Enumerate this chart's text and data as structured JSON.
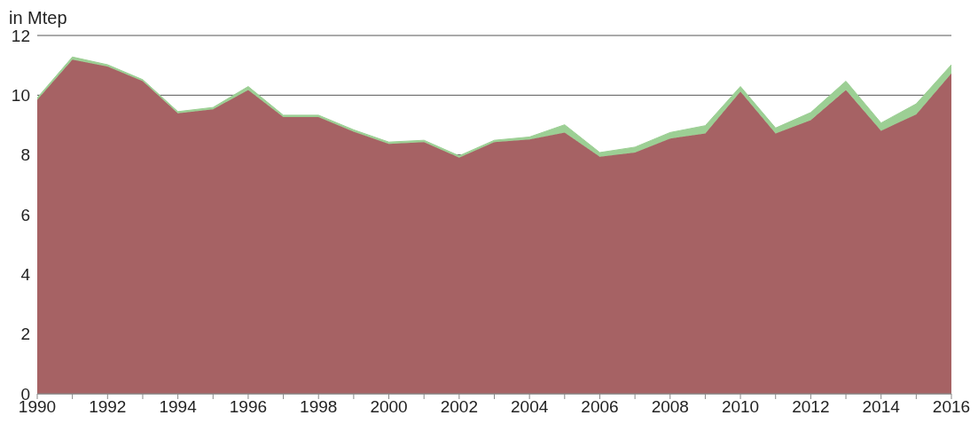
{
  "chart_data": {
    "type": "area",
    "stacked": true,
    "ylabel": "in Mtep",
    "x": [
      1990,
      1991,
      1992,
      1993,
      1994,
      1995,
      1996,
      1997,
      1998,
      1999,
      2000,
      2001,
      2002,
      2003,
      2004,
      2005,
      2006,
      2007,
      2008,
      2009,
      2010,
      2011,
      2012,
      2013,
      2014,
      2015,
      2016
    ],
    "series": [
      {
        "color": "#a66264",
        "values": [
          9.85,
          11.19,
          10.96,
          10.47,
          9.39,
          9.53,
          10.17,
          9.27,
          9.27,
          8.78,
          8.37,
          8.43,
          7.91,
          8.43,
          8.52,
          8.75,
          7.94,
          8.08,
          8.55,
          8.72,
          10.12,
          8.72,
          9.16,
          10.17,
          8.81,
          9.36,
          10.73
        ]
      },
      {
        "color": "#9ccf94",
        "values": [
          0.06,
          0.09,
          0.06,
          0.05,
          0.06,
          0.06,
          0.12,
          0.06,
          0.06,
          0.06,
          0.06,
          0.06,
          0.06,
          0.06,
          0.08,
          0.26,
          0.14,
          0.18,
          0.2,
          0.26,
          0.17,
          0.18,
          0.26,
          0.3,
          0.26,
          0.35,
          0.29
        ]
      }
    ],
    "xlim": [
      1990,
      2016
    ],
    "xticks": [
      1990,
      {
        "value": 1991,
        "label": null
      },
      1992,
      {
        "value": 1993,
        "label": null
      },
      1994,
      {
        "value": 1995,
        "label": null
      },
      1996,
      {
        "value": 1997,
        "label": null
      },
      1998,
      {
        "value": 1999,
        "label": null
      },
      2000,
      {
        "value": 2001,
        "label": null
      },
      2002,
      {
        "value": 2003,
        "label": null
      },
      2004,
      {
        "value": 2005,
        "label": null
      },
      2006,
      {
        "value": 2007,
        "label": null
      },
      2008,
      {
        "value": 2009,
        "label": null
      },
      2010,
      {
        "value": 2011,
        "label": null
      },
      2012,
      {
        "value": 2013,
        "label": null
      },
      2014,
      {
        "value": 2015,
        "label": null
      },
      2016
    ],
    "ylim": [
      0,
      12
    ],
    "yticks": [
      {
        "value": 0,
        "label": "0"
      },
      {
        "value": 2,
        "label": "2"
      },
      {
        "value": 4,
        "label": "4"
      },
      {
        "value": 6,
        "label": "6"
      },
      {
        "value": 8,
        "label": "8"
      },
      10,
      12
    ],
    "grid": "y",
    "legend": false
  }
}
